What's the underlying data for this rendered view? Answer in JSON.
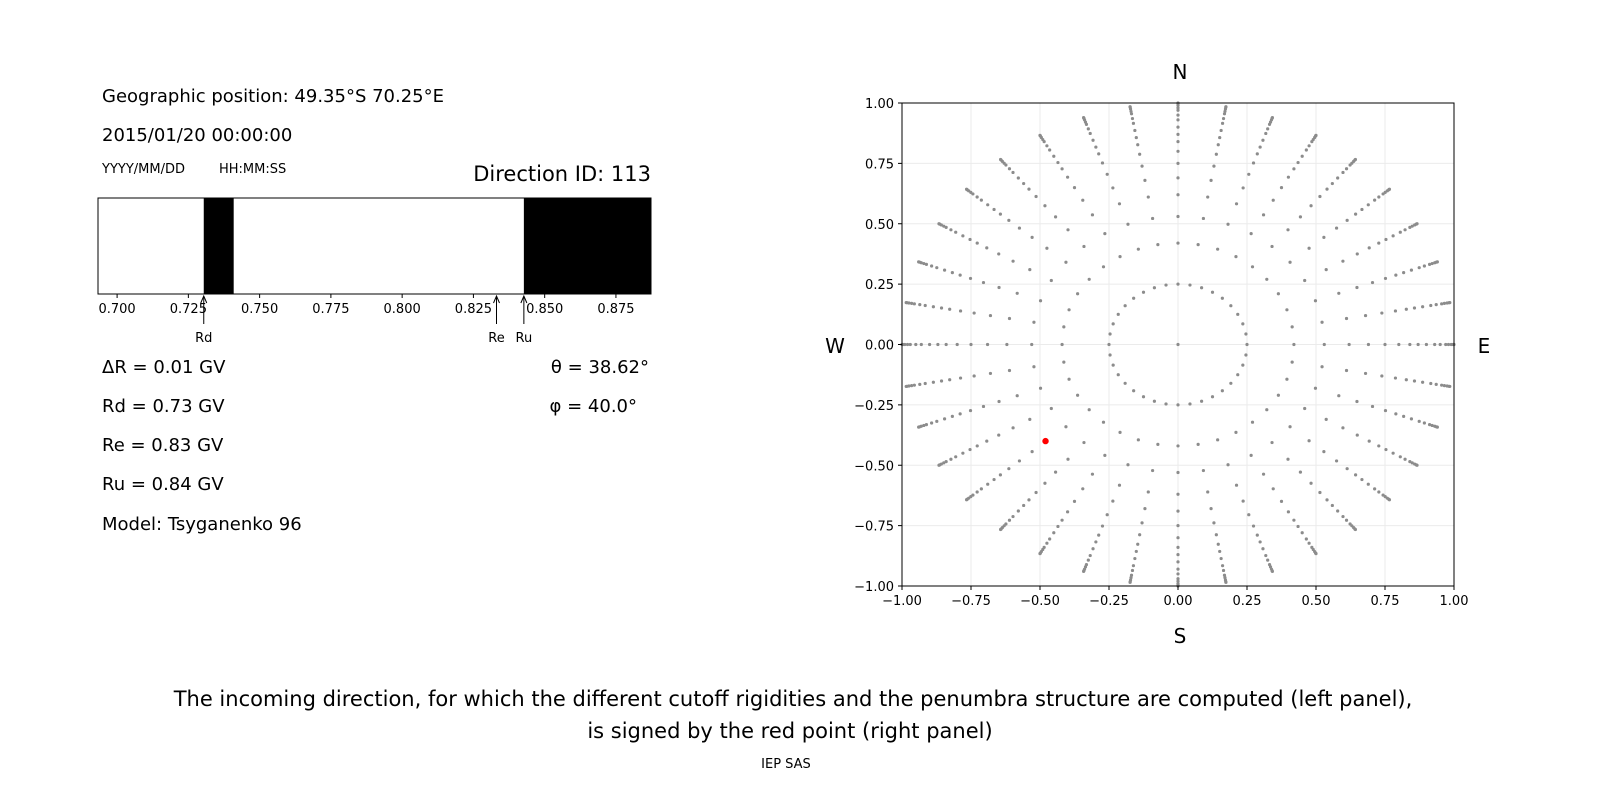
{
  "header": {
    "geo_position": "Geographic position: 49.35°S 70.25°E",
    "datetime": "2015/01/20 00:00:00",
    "date_format_label": "YYYY/MM/DD",
    "time_format_label": "HH:MM:SS",
    "direction_id": "Direction ID: 113"
  },
  "results": {
    "delta_r": "ΔR = 0.01 GV",
    "rd": "Rd = 0.73 GV",
    "re": "Re = 0.83 GV",
    "ru": "Ru = 0.84 GV",
    "model": "Model: Tsyganenko 96",
    "theta": "θ = 38.62°",
    "phi": "φ = 40.0°"
  },
  "caption": {
    "line1": "The incoming direction, for which the different cutoff rigidities and the penumbra structure are computed (left panel),",
    "line2": "is signed by the red point (right panel)",
    "credit": "IEP SAS"
  },
  "chart_data": [
    {
      "type": "bar",
      "subtype": "penumbra-band",
      "xlim": [
        0.6933,
        0.8873
      ],
      "xticks": [
        "0.700",
        "0.725",
        "0.750",
        "0.775",
        "0.800",
        "0.825",
        "0.850",
        "0.875"
      ],
      "xtick_values": [
        0.7,
        0.725,
        0.75,
        0.775,
        0.8,
        0.825,
        0.85,
        0.875
      ],
      "forbidden_bands": [
        [
          0.7304,
          0.7409
        ],
        [
          0.8427,
          0.8873
        ]
      ],
      "colors": {
        "allowed": "#ffffff",
        "forbidden": "#000000"
      },
      "markers": [
        {
          "label": "Rd",
          "x": 0.7304
        },
        {
          "label": "Re",
          "x": 0.8331
        },
        {
          "label": "Ru",
          "x": 0.8427
        }
      ]
    },
    {
      "type": "scatter",
      "xlim": [
        -1,
        1
      ],
      "ylim": [
        -1,
        1
      ],
      "grid": true,
      "xticks": [
        "−1.00",
        "−0.75",
        "−0.50",
        "−0.25",
        "0.00",
        "0.25",
        "0.50",
        "0.75",
        "1.00"
      ],
      "yticks": [
        "−1.00",
        "−0.75",
        "−0.50",
        "−0.25",
        "0.00",
        "0.25",
        "0.50",
        "0.75",
        "1.00"
      ],
      "tick_values": [
        -1,
        -0.75,
        -0.5,
        -0.25,
        0,
        0.25,
        0.5,
        0.75,
        1
      ],
      "compass": {
        "north": "N",
        "south": "S",
        "west": "W",
        "east": "E"
      },
      "grid_points": {
        "description_rays_azimuth_step_deg": 10,
        "ring_radii": [
          0.25,
          0.42,
          0.53,
          0.62,
          0.69,
          0.75,
          0.8,
          0.84,
          0.87,
          0.9,
          0.93,
          0.95,
          0.97,
          0.98,
          0.99,
          0.997,
          1.0
        ],
        "center_point": true,
        "color": "#8c8c8c"
      },
      "selected_point": {
        "x": -0.48,
        "y": -0.4,
        "color": "#ff0000"
      }
    }
  ]
}
